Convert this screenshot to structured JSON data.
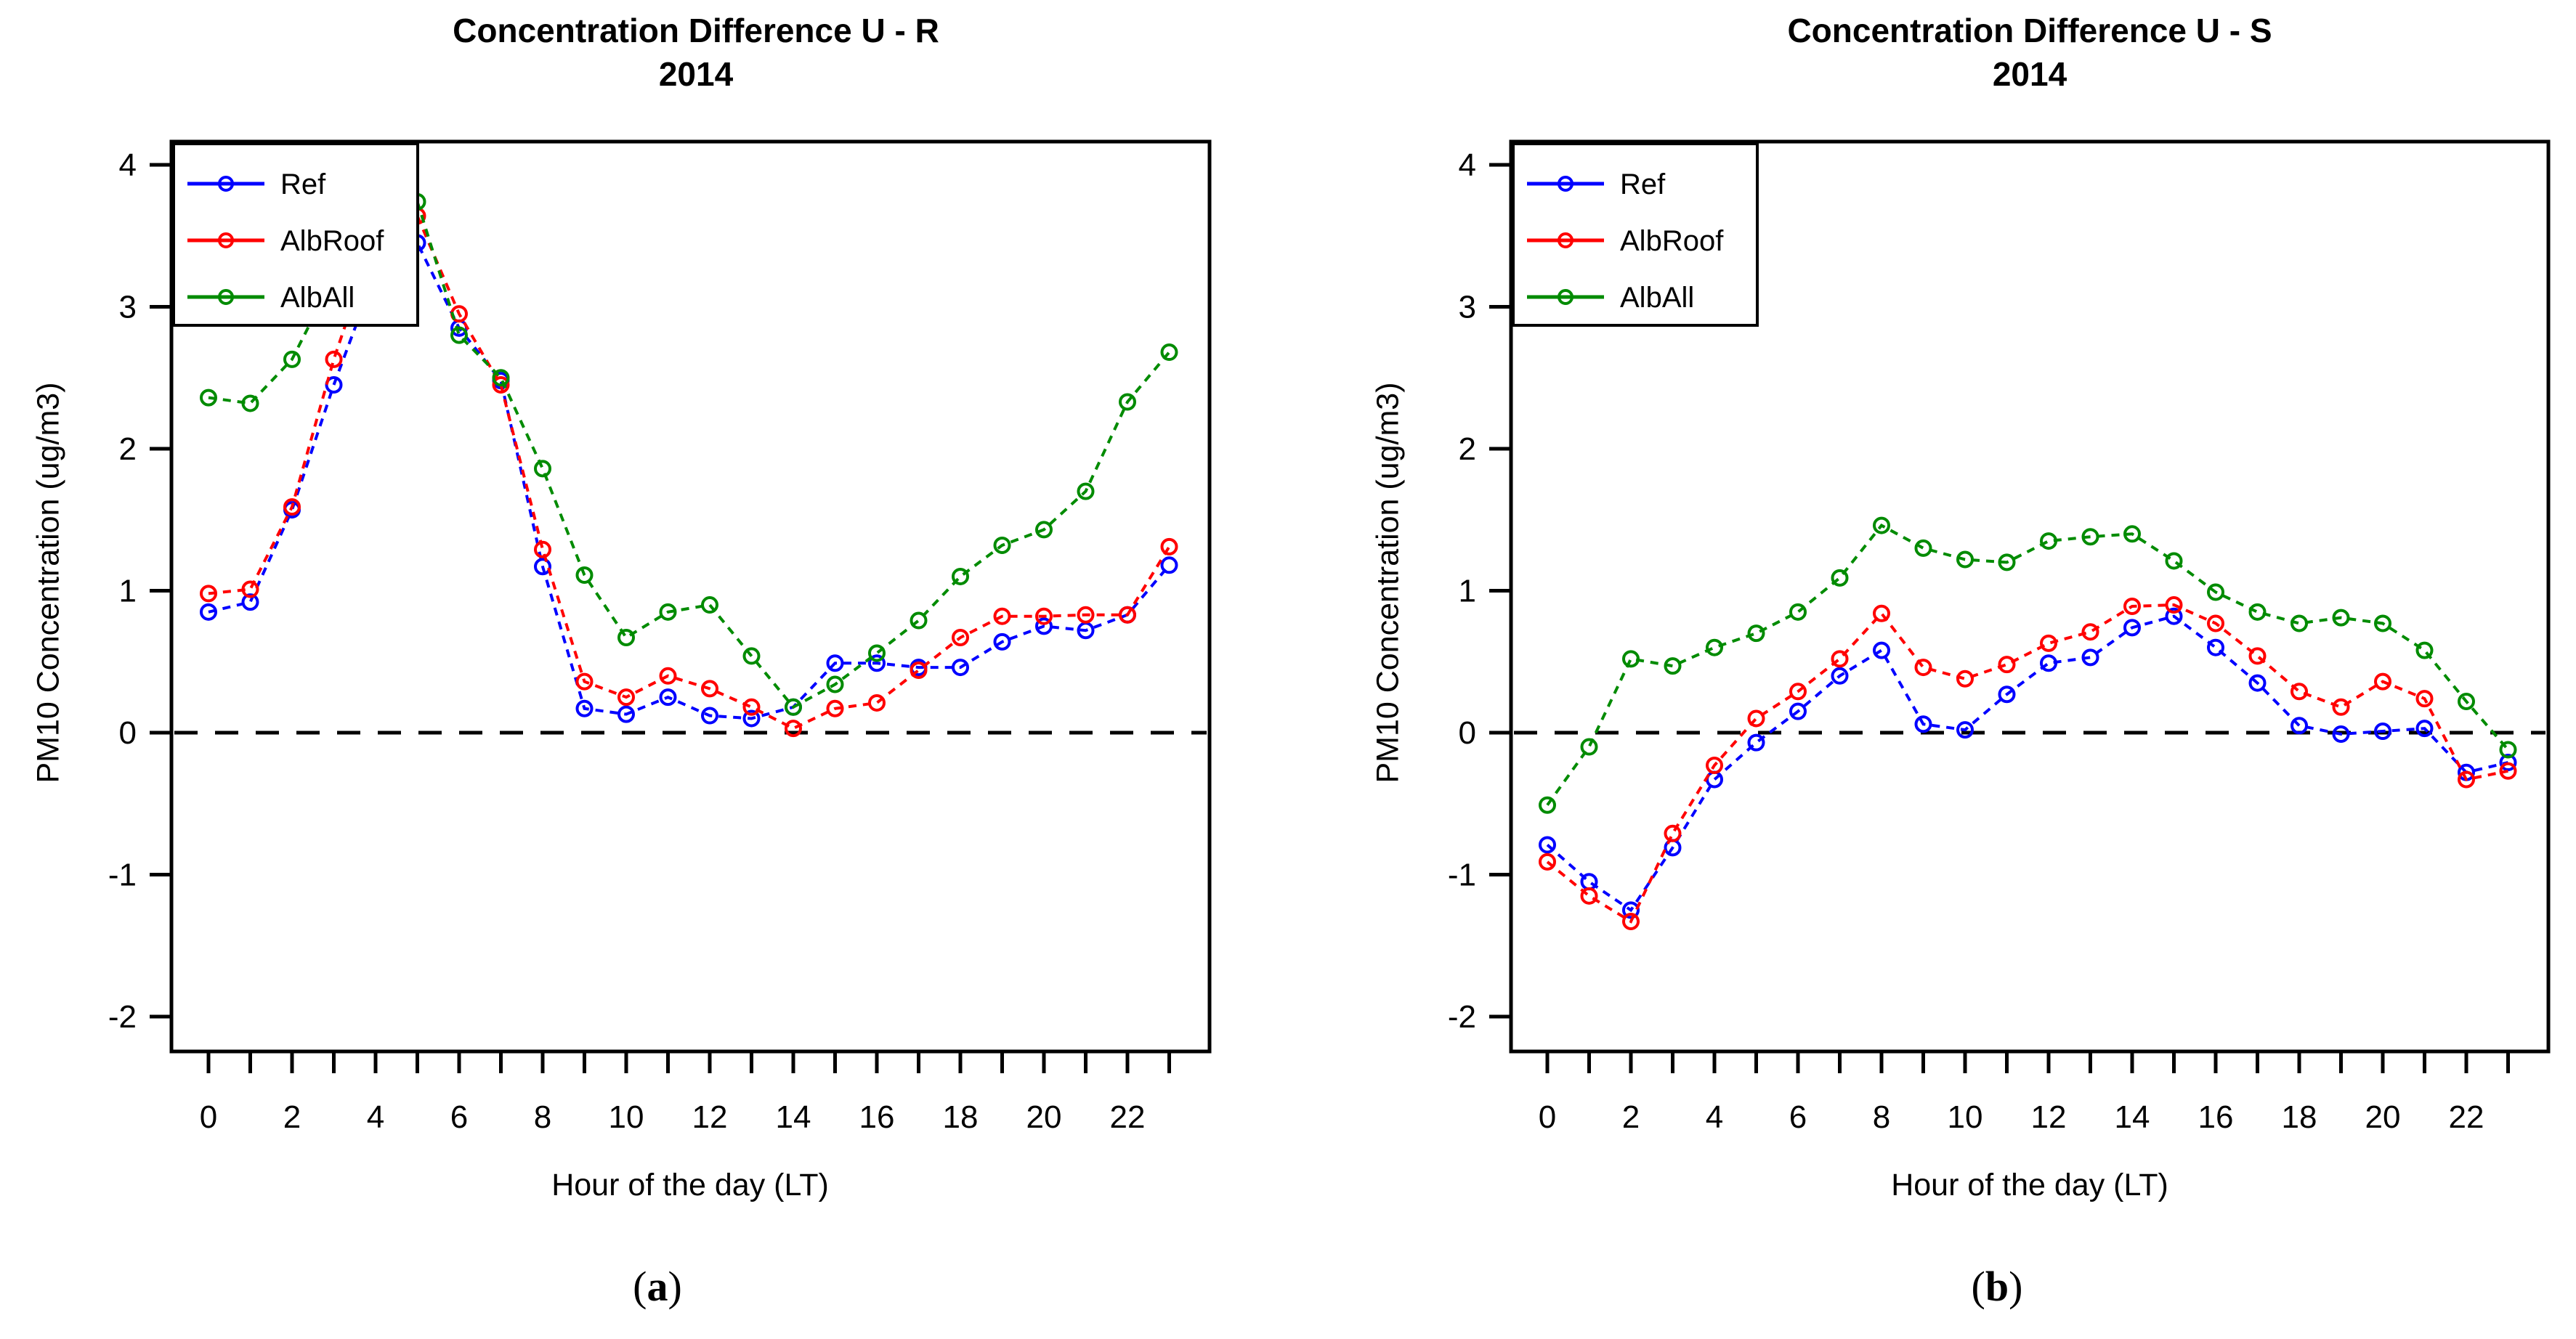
{
  "figure": {
    "background": "#ffffff",
    "axis_color": "#000000",
    "zero_line_style": "dashed"
  },
  "chart_data": [
    {
      "panel_id": "a",
      "type": "line",
      "title": "Concentration Difference U - R",
      "subtitle": "2014",
      "xlabel": "Hour of the day (LT)",
      "ylabel": "PM10 Concentration (ug/m3)",
      "caption": {
        "open": "(",
        "letter": "a",
        "close": ")"
      },
      "legend_position": "top-left",
      "grid": false,
      "zero_line": true,
      "marker": "open-circle",
      "line_style": "dashed",
      "ylim": [
        -2.25,
        4.15
      ],
      "x": [
        0,
        1,
        2,
        3,
        4,
        5,
        6,
        7,
        8,
        9,
        10,
        11,
        12,
        13,
        14,
        15,
        16,
        17,
        18,
        19,
        20,
        21,
        22,
        23
      ],
      "yticks": [
        {
          "v": 4,
          "label": "4"
        },
        {
          "v": 3,
          "label": "3"
        },
        {
          "v": 2,
          "label": "2"
        },
        {
          "v": 1,
          "label": "1"
        },
        {
          "v": 0,
          "label": "0"
        },
        {
          "v": -1,
          "label": "-1"
        },
        {
          "v": -2,
          "label": "-2"
        }
      ],
      "xtick_labels": [
        {
          "v": 0,
          "label": "0"
        },
        {
          "v": 2,
          "label": "2"
        },
        {
          "v": 4,
          "label": "4"
        },
        {
          "v": 6,
          "label": "6"
        },
        {
          "v": 8,
          "label": "8"
        },
        {
          "v": 10,
          "label": "10"
        },
        {
          "v": 12,
          "label": "12"
        },
        {
          "v": 14,
          "label": "14"
        },
        {
          "v": 16,
          "label": "16"
        },
        {
          "v": 18,
          "label": "18"
        },
        {
          "v": 20,
          "label": "20"
        },
        {
          "v": 22,
          "label": "22"
        }
      ],
      "series": [
        {
          "name": "Ref",
          "color": "#0000FF",
          "values": [
            0.85,
            0.92,
            1.57,
            2.45,
            3.24,
            3.45,
            2.85,
            2.48,
            1.17,
            0.17,
            0.13,
            0.25,
            0.12,
            0.1,
            0.18,
            0.49,
            0.49,
            0.46,
            0.46,
            0.64,
            0.75,
            0.72,
            0.83,
            1.18
          ]
        },
        {
          "name": "AlbRoof",
          "color": "#FF0000",
          "values": [
            0.98,
            1.01,
            1.59,
            2.63,
            3.5,
            3.64,
            2.95,
            2.45,
            1.29,
            0.36,
            0.25,
            0.4,
            0.31,
            0.18,
            0.03,
            0.17,
            0.21,
            0.44,
            0.67,
            0.82,
            0.82,
            0.83,
            0.83,
            1.31
          ]
        },
        {
          "name": "AlbAll",
          "color": "#008B00",
          "values": [
            2.36,
            2.32,
            2.63,
            3.21,
            3.9,
            3.74,
            2.8,
            2.5,
            1.86,
            1.11,
            0.67,
            0.85,
            0.9,
            0.54,
            0.18,
            0.34,
            0.56,
            0.79,
            1.1,
            1.32,
            1.43,
            1.7,
            2.33,
            2.68
          ]
        }
      ]
    },
    {
      "panel_id": "b",
      "type": "line",
      "title": "Concentration Difference U - S",
      "subtitle": "2014",
      "xlabel": "Hour of the day (LT)",
      "ylabel": "PM10 Concentration (ug/m3)",
      "caption": {
        "open": "(",
        "letter": "b",
        "close": ")"
      },
      "legend_position": "top-left",
      "grid": false,
      "zero_line": true,
      "marker": "open-circle",
      "line_style": "dashed",
      "ylim": [
        -2.25,
        4.15
      ],
      "x": [
        0,
        1,
        2,
        3,
        4,
        5,
        6,
        7,
        8,
        9,
        10,
        11,
        12,
        13,
        14,
        15,
        16,
        17,
        18,
        19,
        20,
        21,
        22,
        23
      ],
      "yticks": [
        {
          "v": 4,
          "label": "4"
        },
        {
          "v": 3,
          "label": "3"
        },
        {
          "v": 2,
          "label": "2"
        },
        {
          "v": 1,
          "label": "1"
        },
        {
          "v": 0,
          "label": "0"
        },
        {
          "v": -1,
          "label": "-1"
        },
        {
          "v": -2,
          "label": "-2"
        }
      ],
      "xtick_labels": [
        {
          "v": 0,
          "label": "0"
        },
        {
          "v": 2,
          "label": "2"
        },
        {
          "v": 4,
          "label": "4"
        },
        {
          "v": 6,
          "label": "6"
        },
        {
          "v": 8,
          "label": "8"
        },
        {
          "v": 10,
          "label": "10"
        },
        {
          "v": 12,
          "label": "12"
        },
        {
          "v": 14,
          "label": "14"
        },
        {
          "v": 16,
          "label": "16"
        },
        {
          "v": 18,
          "label": "18"
        },
        {
          "v": 20,
          "label": "20"
        },
        {
          "v": 22,
          "label": "22"
        }
      ],
      "series": [
        {
          "name": "Ref",
          "color": "#0000FF",
          "values": [
            -0.79,
            -1.05,
            -1.25,
            -0.81,
            -0.33,
            -0.07,
            0.15,
            0.4,
            0.58,
            0.06,
            0.02,
            0.27,
            0.49,
            0.53,
            0.74,
            0.82,
            0.6,
            0.35,
            0.05,
            -0.01,
            0.01,
            0.03,
            -0.28,
            -0.21
          ]
        },
        {
          "name": "AlbRoof",
          "color": "#FF0000",
          "values": [
            -0.91,
            -1.15,
            -1.33,
            -0.71,
            -0.23,
            0.1,
            0.29,
            0.52,
            0.84,
            0.46,
            0.38,
            0.48,
            0.63,
            0.71,
            0.89,
            0.9,
            0.77,
            0.54,
            0.29,
            0.18,
            0.36,
            0.24,
            -0.33,
            -0.27
          ]
        },
        {
          "name": "AlbAll",
          "color": "#008B00",
          "values": [
            -0.51,
            -0.1,
            0.52,
            0.47,
            0.6,
            0.7,
            0.85,
            1.09,
            1.46,
            1.3,
            1.22,
            1.2,
            1.35,
            1.38,
            1.4,
            1.21,
            0.99,
            0.85,
            0.77,
            0.81,
            0.77,
            0.58,
            0.22,
            -0.12
          ]
        }
      ]
    }
  ]
}
